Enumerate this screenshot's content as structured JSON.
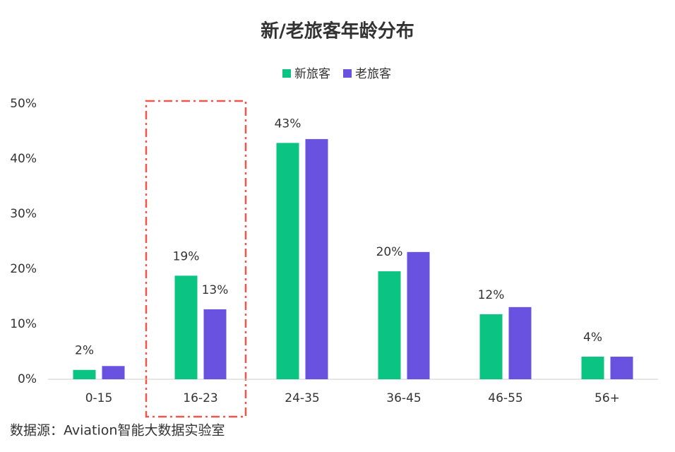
{
  "chart_data": {
    "type": "bar",
    "title": "新/老旅客年龄分布",
    "categories": [
      "0-15",
      "16-23",
      "24-35",
      "36-45",
      "46-55",
      "56+"
    ],
    "series": [
      {
        "name": "新旅客",
        "color": "#0bc484",
        "values": [
          1.7,
          18.8,
          42.9,
          19.6,
          11.8,
          4.1
        ],
        "value_labels": [
          "2%",
          "19%",
          "43%",
          "20%",
          "12%",
          "4%"
        ]
      },
      {
        "name": "老旅客",
        "color": "#6a52e0",
        "values": [
          2.4,
          12.7,
          43.6,
          23.1,
          13.1,
          4.1
        ],
        "value_labels": [
          null,
          "13%",
          null,
          null,
          null,
          null
        ]
      }
    ],
    "ylim": [
      0,
      50
    ],
    "yticks": [
      {
        "value": 0,
        "label": "0%"
      },
      {
        "value": 10,
        "label": "10%"
      },
      {
        "value": 20,
        "label": "20%"
      },
      {
        "value": 30,
        "label": "30%"
      },
      {
        "value": 40,
        "label": "40%"
      },
      {
        "value": 50,
        "label": "50%"
      }
    ],
    "legend": "top",
    "source": "数据源：Aviation智能大数据实验室"
  }
}
